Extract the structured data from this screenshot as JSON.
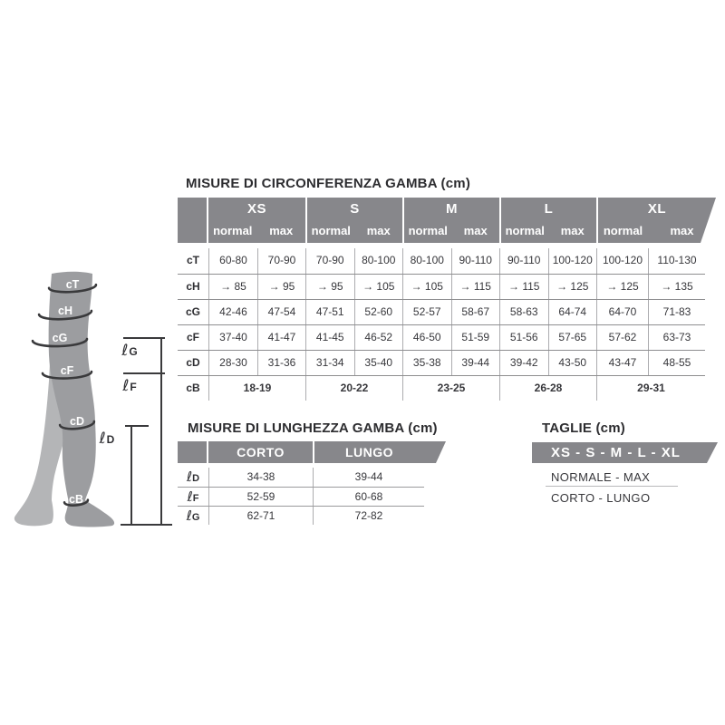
{
  "colors": {
    "header_gray": "#87878B",
    "leg_front": "#9C9DA0",
    "leg_back": "#B4B5B7",
    "line_dark": "#3A3A3C",
    "text_dark": "#37373B"
  },
  "circumference_table": {
    "title": "MISURE DI CIRCONFERENZA GAMBA (cm)",
    "sizes": [
      "XS",
      "S",
      "M",
      "L",
      "XL"
    ],
    "sub_headers": [
      "normal",
      "max"
    ],
    "rows": [
      {
        "label": "cT",
        "values": [
          "60-80",
          "70-90",
          "70-90",
          "80-100",
          "80-100",
          "90-110",
          "90-110",
          "100-120",
          "100-120",
          "110-130"
        ]
      },
      {
        "label": "cH",
        "values": [
          "→ 85",
          "→ 95",
          "→ 95",
          "→ 105",
          "→ 105",
          "→ 115",
          "→ 115",
          "→ 125",
          "→ 125",
          "→ 135"
        ]
      },
      {
        "label": "cG",
        "values": [
          "42-46",
          "47-54",
          "47-51",
          "52-60",
          "52-57",
          "58-67",
          "58-63",
          "64-74",
          "64-70",
          "71-83"
        ]
      },
      {
        "label": "cF",
        "values": [
          "37-40",
          "41-47",
          "41-45",
          "46-52",
          "46-50",
          "51-59",
          "51-56",
          "57-65",
          "57-62",
          "63-73"
        ]
      },
      {
        "label": "cD",
        "values": [
          "28-30",
          "31-36",
          "31-34",
          "35-40",
          "35-38",
          "39-44",
          "39-42",
          "43-50",
          "43-47",
          "48-55"
        ]
      }
    ],
    "footer_row": {
      "label": "cB",
      "values": [
        "18-19",
        "20-22",
        "23-25",
        "26-28",
        "29-31"
      ]
    }
  },
  "length_table": {
    "title": "MISURE DI LUNGHEZZA GAMBA (cm)",
    "columns": [
      "CORTO",
      "LUNGO"
    ],
    "rows": [
      {
        "label_script": "ℓ",
        "label_letter": "D",
        "values": [
          "34-38",
          "39-44"
        ]
      },
      {
        "label_script": "ℓ",
        "label_letter": "F",
        "values": [
          "52-59",
          "60-68"
        ]
      },
      {
        "label_script": "ℓ",
        "label_letter": "G",
        "values": [
          "62-71",
          "72-82"
        ]
      }
    ]
  },
  "taglie": {
    "title": "TAGLIE (cm)",
    "band_label": "XS - S - M - L - XL",
    "line1": "NORMALE - MAX",
    "line2": "CORTO - LUNGO"
  },
  "leg_diagram": {
    "bands": [
      "cT",
      "cH",
      "cG",
      "cF",
      "cD",
      "cB"
    ],
    "lengths": [
      {
        "script": "ℓ",
        "letter": "G"
      },
      {
        "script": "ℓ",
        "letter": "F"
      },
      {
        "script": "ℓ",
        "letter": "D"
      }
    ]
  }
}
